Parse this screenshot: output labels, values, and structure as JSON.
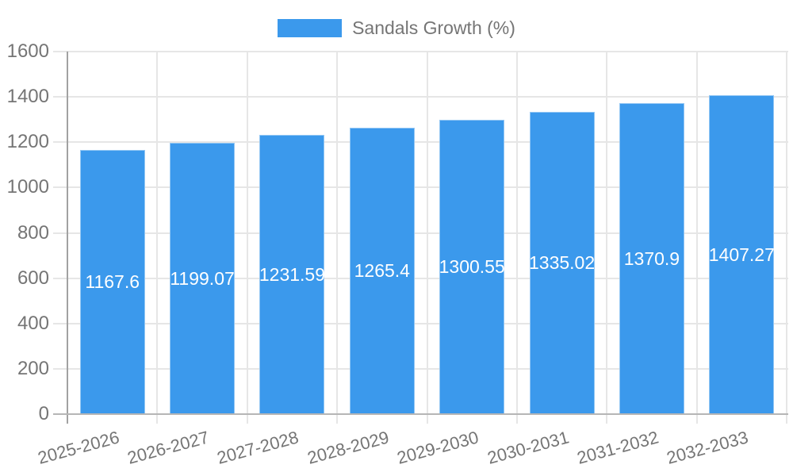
{
  "legend": {
    "label": "Sandals Growth (%)"
  },
  "chart_data": {
    "type": "bar",
    "title": "",
    "xlabel": "",
    "ylabel": "",
    "categories": [
      "2025-2026",
      "2026-2027",
      "2027-2028",
      "2028-2029",
      "2029-2030",
      "2030-2031",
      "2031-2032",
      "2032-2033"
    ],
    "series": [
      {
        "name": "Sandals Growth (%)",
        "values": [
          1167.6,
          1199.07,
          1231.59,
          1265.4,
          1300.55,
          1335.02,
          1370.9,
          1407.27
        ]
      }
    ],
    "value_labels": [
      "1167.6",
      "1199.07",
      "1231.59",
      "1265.4",
      "1300.55",
      "1335.02",
      "1370.9",
      "1407.27"
    ],
    "ylim": [
      0,
      1600
    ],
    "ytick_step": 200,
    "ytick_labels": [
      "0",
      "200",
      "400",
      "600",
      "800",
      "1000",
      "1200",
      "1400",
      "1600"
    ],
    "grid": true,
    "legend_position": "top",
    "colors": {
      "bar_fill": "#3B99EC",
      "grid_line": "#E6E6E6",
      "y_axis_line": "#A2A2A2",
      "baseline": "#B6B6B6",
      "tick_text": "#757575",
      "value_text": "#FFFFFF"
    }
  }
}
